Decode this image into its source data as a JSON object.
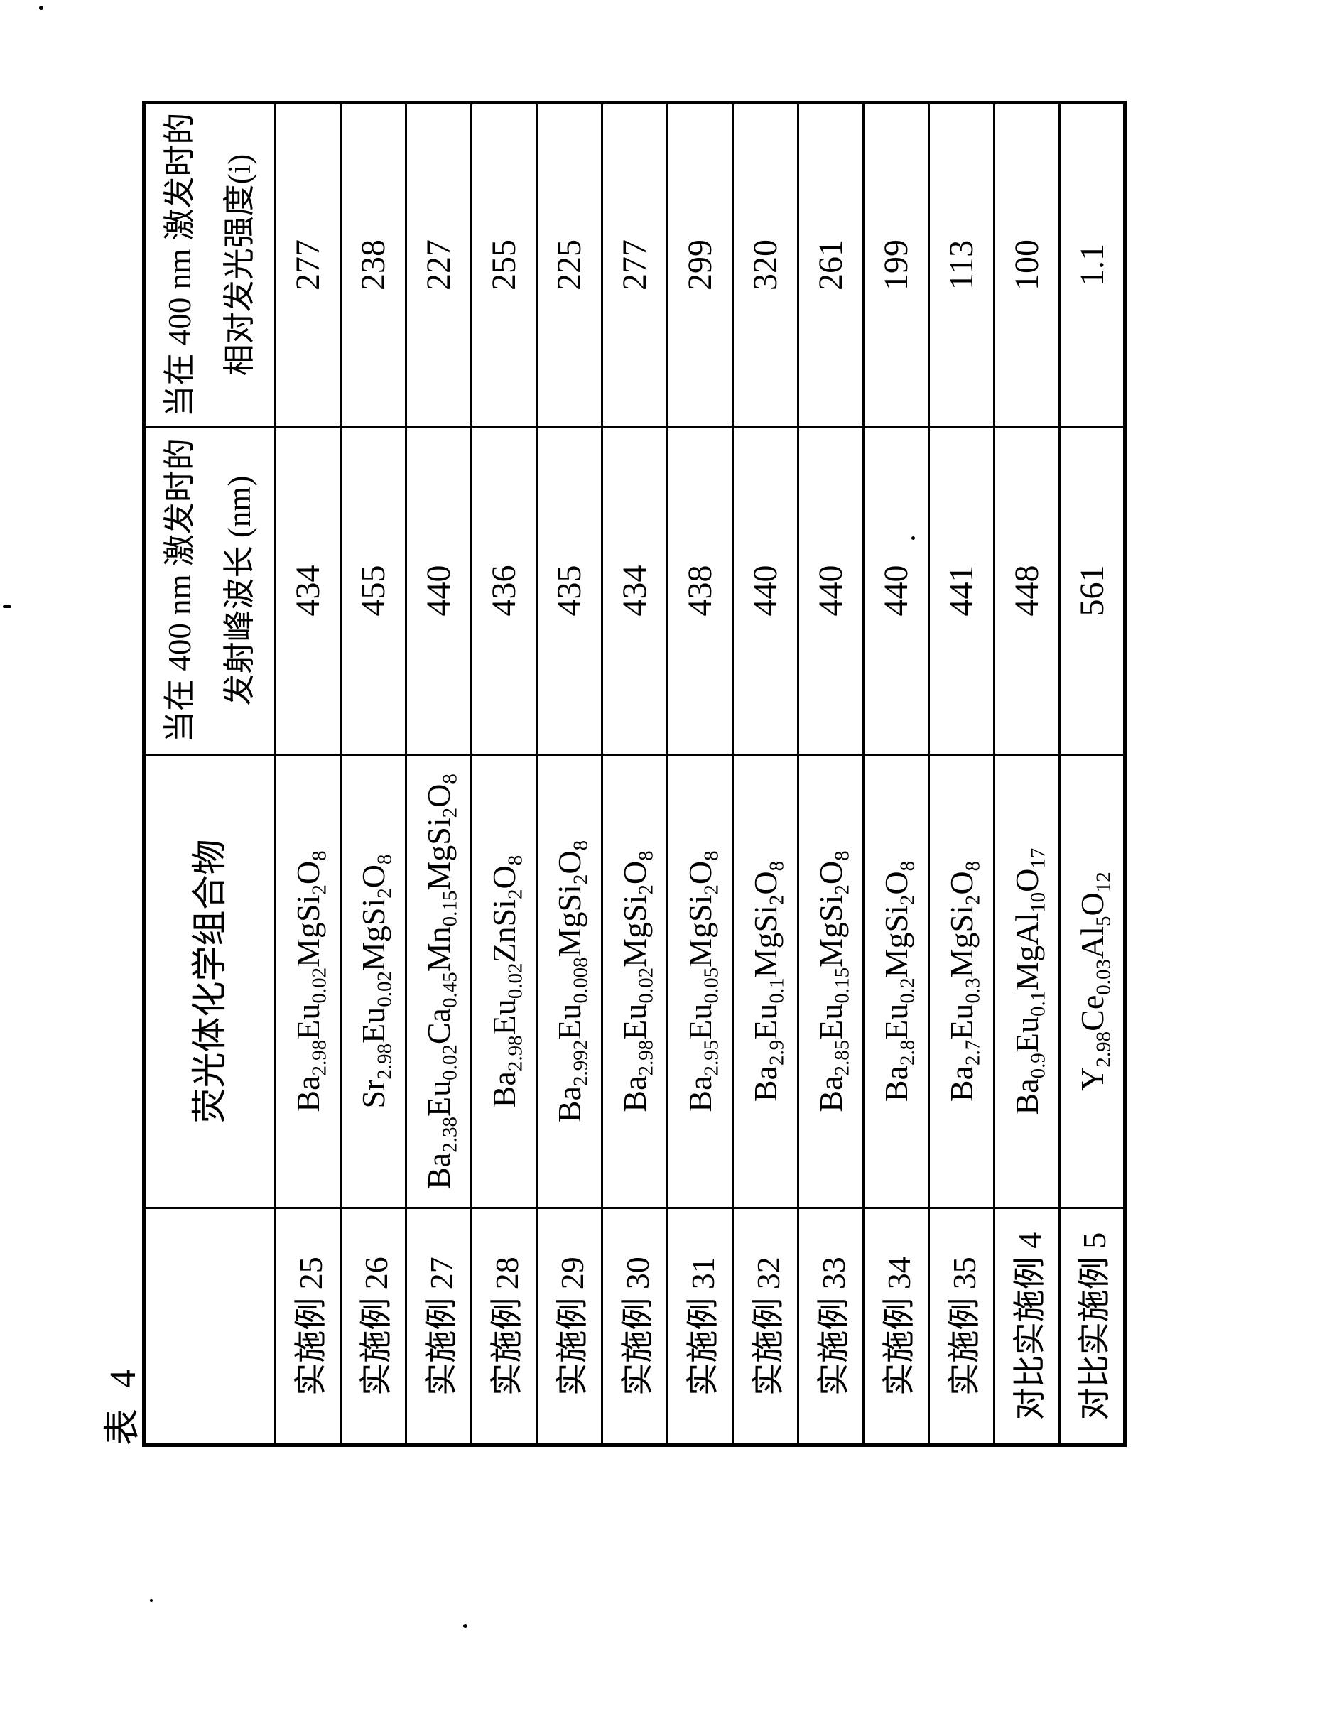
{
  "page": {
    "title": "表 4"
  },
  "table": {
    "headers": {
      "corner": "",
      "composition": "荧光体化学组合物",
      "wavelength": [
        "当在 400 nm 激发时的",
        "发射峰波长 (nm)"
      ],
      "intensity": [
        "当在 400 nm 激发时的",
        "相对发光强度(i)"
      ]
    },
    "rows": [
      {
        "label": "实施例 25",
        "formula": [
          "Ba",
          "2.98",
          "Eu",
          "0.02",
          "MgSi",
          "2",
          "O",
          "8"
        ],
        "wavelength": "434",
        "intensity": "277"
      },
      {
        "label": "实施例 26",
        "formula": [
          "Sr",
          "2.98",
          "Eu",
          "0.02",
          "MgSi",
          "2",
          "O",
          "8"
        ],
        "wavelength": "455",
        "intensity": "238"
      },
      {
        "label": "实施例 27",
        "formula": [
          "Ba",
          "2.38",
          "Eu",
          "0.02",
          "Ca",
          "0.45",
          "Mn",
          "0.15",
          "MgSi",
          "2",
          "O",
          "8"
        ],
        "wavelength": "440",
        "intensity": "227"
      },
      {
        "label": "实施例 28",
        "formula": [
          "Ba",
          "2.98",
          "Eu",
          "0.02",
          "ZnSi",
          "2",
          "O",
          "8"
        ],
        "wavelength": "436",
        "intensity": "255"
      },
      {
        "label": "实施例 29",
        "formula": [
          "Ba",
          "2.992",
          "Eu",
          "0.008",
          "MgSi",
          "2",
          "O",
          "8"
        ],
        "wavelength": "435",
        "intensity": "225"
      },
      {
        "label": "实施例 30",
        "formula": [
          "Ba",
          "2.98",
          "Eu",
          "0.02",
          "MgSi",
          "2",
          "O",
          "8"
        ],
        "wavelength": "434",
        "intensity": "277"
      },
      {
        "label": "实施例 31",
        "formula": [
          "Ba",
          "2.95",
          "Eu",
          "0.05",
          "MgSi",
          "2",
          "O",
          "8"
        ],
        "wavelength": "438",
        "intensity": "299"
      },
      {
        "label": "实施例 32",
        "formula": [
          "Ba",
          "2.9",
          "Eu",
          "0.1",
          "MgSi",
          "2",
          "O",
          "8"
        ],
        "wavelength": "440",
        "intensity": "320"
      },
      {
        "label": "实施例 33",
        "formula": [
          "Ba",
          "2.85",
          "Eu",
          "0.15",
          "MgSi",
          "2",
          "O",
          "8"
        ],
        "wavelength": "440",
        "intensity": "261"
      },
      {
        "label": "实施例 34",
        "formula": [
          "Ba",
          "2.8",
          "Eu",
          "0.2",
          "MgSi",
          "2",
          "O",
          "8"
        ],
        "wavelength": "440",
        "intensity": "199"
      },
      {
        "label": "实施例 35",
        "formula": [
          "Ba",
          "2.7",
          "Eu",
          "0.3",
          "MgSi",
          "2",
          "O",
          "8"
        ],
        "wavelength": "441",
        "intensity": "113"
      },
      {
        "label": "对比实施例 4",
        "formula": [
          "Ba",
          "0.9",
          "Eu",
          "0.1",
          "MgAl",
          "10",
          "O",
          "17"
        ],
        "wavelength": "448",
        "intensity": "100"
      },
      {
        "label": "对比实施例 5",
        "formula": [
          "Y",
          "2.98",
          "Ce",
          "0.03",
          "Al",
          "5",
          "O",
          "12"
        ],
        "wavelength": "561",
        "intensity": "1.1"
      }
    ]
  }
}
